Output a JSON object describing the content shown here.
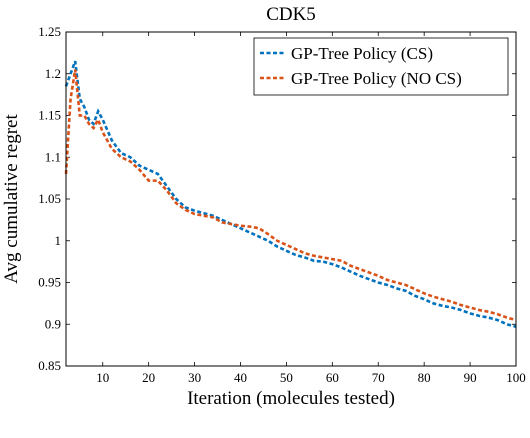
{
  "chart_data": {
    "type": "line",
    "title": "CDK5",
    "x_label": "Iteration (molecules tested)",
    "y_label": "Avg cumulative regret",
    "x": [
      2,
      3,
      4,
      5,
      6,
      7,
      8,
      9,
      10,
      12,
      14,
      16,
      18,
      20,
      22,
      24,
      26,
      28,
      30,
      32,
      34,
      36,
      38,
      40,
      42,
      44,
      46,
      48,
      50,
      52,
      54,
      56,
      58,
      60,
      62,
      64,
      66,
      68,
      70,
      72,
      74,
      76,
      78,
      80,
      82,
      84,
      86,
      88,
      90,
      92,
      94,
      96,
      98,
      100
    ],
    "series": [
      {
        "name": "GP-Tree Policy (CS)",
        "color": "#0072bd",
        "values": [
          1.185,
          1.2,
          1.215,
          1.17,
          1.16,
          1.145,
          1.14,
          1.155,
          1.145,
          1.12,
          1.105,
          1.1,
          1.09,
          1.085,
          1.08,
          1.065,
          1.05,
          1.04,
          1.036,
          1.033,
          1.03,
          1.025,
          1.02,
          1.015,
          1.01,
          1.005,
          1.0,
          0.993,
          0.988,
          0.983,
          0.98,
          0.976,
          0.975,
          0.972,
          0.968,
          0.963,
          0.958,
          0.954,
          0.95,
          0.947,
          0.943,
          0.94,
          0.934,
          0.93,
          0.925,
          0.922,
          0.92,
          0.917,
          0.913,
          0.91,
          0.908,
          0.905,
          0.9,
          0.897
        ]
      },
      {
        "name": "GP-Tree Policy (NO CS)",
        "color": "#d95319",
        "values": [
          1.08,
          1.17,
          1.205,
          1.15,
          1.15,
          1.14,
          1.135,
          1.145,
          1.13,
          1.11,
          1.1,
          1.095,
          1.085,
          1.072,
          1.072,
          1.06,
          1.045,
          1.037,
          1.032,
          1.03,
          1.028,
          1.022,
          1.02,
          1.018,
          1.017,
          1.015,
          1.008,
          1.0,
          0.995,
          0.99,
          0.985,
          0.982,
          0.98,
          0.978,
          0.976,
          0.97,
          0.966,
          0.962,
          0.958,
          0.953,
          0.95,
          0.947,
          0.942,
          0.937,
          0.933,
          0.93,
          0.927,
          0.923,
          0.92,
          0.917,
          0.915,
          0.912,
          0.908,
          0.905
        ]
      }
    ],
    "xlim": [
      2,
      100
    ],
    "ylim": [
      0.85,
      1.25
    ],
    "xticks": [
      10,
      20,
      30,
      40,
      50,
      60,
      70,
      80,
      90,
      100
    ],
    "yticks": [
      0.85,
      0.9,
      0.95,
      1,
      1.05,
      1.1,
      1.15,
      1.2,
      1.25
    ],
    "legend": "upper right"
  }
}
